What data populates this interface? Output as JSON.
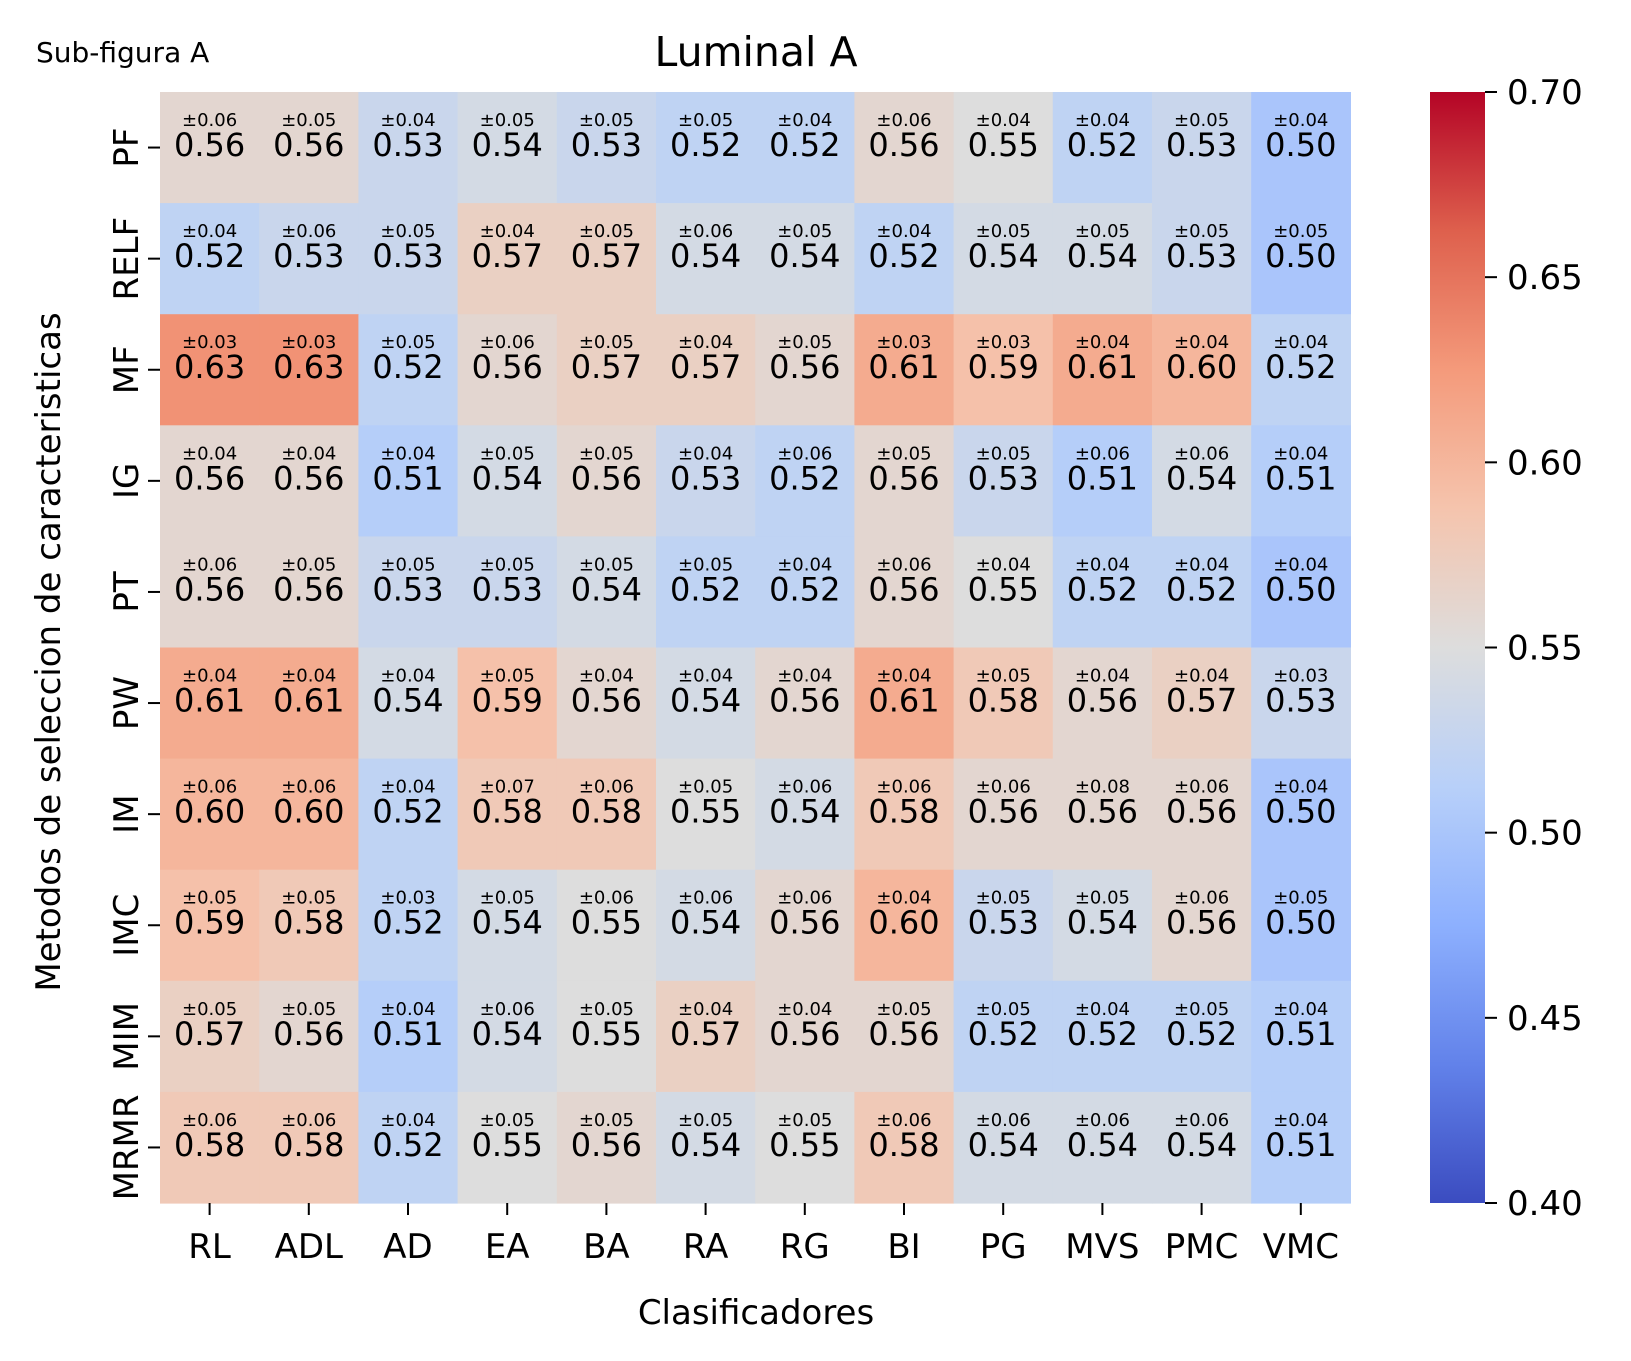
{
  "figure": {
    "panel_label": "Sub-figura A"
  },
  "chart_data": {
    "type": "heatmap",
    "title": "Luminal A",
    "xlabel": "Clasificadores",
    "ylabel": "Metodos de seleccion de caracteristicas",
    "categories_x": [
      "RL",
      "ADL",
      "AD",
      "EA",
      "BA",
      "RA",
      "RG",
      "BI",
      "PG",
      "MVS",
      "PMC",
      "VMC"
    ],
    "categories_y": [
      "PF",
      "RELF",
      "MF",
      "IG",
      "PT",
      "PW",
      "IM",
      "IMC",
      "MIM",
      "MRMR"
    ],
    "values": [
      [
        0.56,
        0.56,
        0.53,
        0.54,
        0.53,
        0.52,
        0.52,
        0.56,
        0.55,
        0.52,
        0.53,
        0.5
      ],
      [
        0.52,
        0.53,
        0.53,
        0.57,
        0.57,
        0.54,
        0.54,
        0.52,
        0.54,
        0.54,
        0.53,
        0.5
      ],
      [
        0.63,
        0.63,
        0.52,
        0.56,
        0.57,
        0.57,
        0.56,
        0.61,
        0.59,
        0.61,
        0.6,
        0.52
      ],
      [
        0.56,
        0.56,
        0.51,
        0.54,
        0.56,
        0.53,
        0.52,
        0.56,
        0.53,
        0.51,
        0.54,
        0.51
      ],
      [
        0.56,
        0.56,
        0.53,
        0.53,
        0.54,
        0.52,
        0.52,
        0.56,
        0.55,
        0.52,
        0.52,
        0.5
      ],
      [
        0.61,
        0.61,
        0.54,
        0.59,
        0.56,
        0.54,
        0.56,
        0.61,
        0.58,
        0.56,
        0.57,
        0.53
      ],
      [
        0.6,
        0.6,
        0.52,
        0.58,
        0.58,
        0.55,
        0.54,
        0.58,
        0.56,
        0.56,
        0.56,
        0.5
      ],
      [
        0.59,
        0.58,
        0.52,
        0.54,
        0.55,
        0.54,
        0.56,
        0.6,
        0.53,
        0.54,
        0.56,
        0.5
      ],
      [
        0.57,
        0.56,
        0.51,
        0.54,
        0.55,
        0.57,
        0.56,
        0.56,
        0.52,
        0.52,
        0.52,
        0.51
      ],
      [
        0.58,
        0.58,
        0.52,
        0.55,
        0.56,
        0.54,
        0.55,
        0.58,
        0.54,
        0.54,
        0.54,
        0.51
      ]
    ],
    "errors": [
      [
        "±0.06",
        "±0.05",
        "±0.04",
        "±0.05",
        "±0.05",
        "±0.05",
        "±0.04",
        "±0.06",
        "±0.04",
        "±0.04",
        "±0.05",
        "±0.04"
      ],
      [
        "±0.04",
        "±0.06",
        "±0.05",
        "±0.04",
        "±0.05",
        "±0.06",
        "±0.05",
        "±0.04",
        "±0.05",
        "±0.05",
        "±0.05",
        "±0.05"
      ],
      [
        "±0.03",
        "±0.03",
        "±0.05",
        "±0.06",
        "±0.05",
        "±0.04",
        "±0.05",
        "±0.03",
        "±0.03",
        "±0.04",
        "±0.04",
        "±0.04"
      ],
      [
        "±0.04",
        "±0.04",
        "±0.04",
        "±0.05",
        "±0.05",
        "±0.04",
        "±0.06",
        "±0.05",
        "±0.05",
        "±0.06",
        "±0.06",
        "±0.04"
      ],
      [
        "±0.06",
        "±0.05",
        "±0.05",
        "±0.05",
        "±0.05",
        "±0.05",
        "±0.04",
        "±0.06",
        "±0.04",
        "±0.04",
        "±0.04",
        "±0.04"
      ],
      [
        "±0.04",
        "±0.04",
        "±0.04",
        "±0.05",
        "±0.04",
        "±0.04",
        "±0.04",
        "±0.04",
        "±0.05",
        "±0.04",
        "±0.04",
        "±0.03"
      ],
      [
        "±0.06",
        "±0.06",
        "±0.04",
        "±0.07",
        "±0.06",
        "±0.05",
        "±0.06",
        "±0.06",
        "±0.06",
        "±0.08",
        "±0.06",
        "±0.04"
      ],
      [
        "±0.05",
        "±0.05",
        "±0.03",
        "±0.05",
        "±0.06",
        "±0.06",
        "±0.06",
        "±0.04",
        "±0.05",
        "±0.05",
        "±0.06",
        "±0.05"
      ],
      [
        "±0.05",
        "±0.05",
        "±0.04",
        "±0.06",
        "±0.05",
        "±0.04",
        "±0.04",
        "±0.05",
        "±0.05",
        "±0.04",
        "±0.05",
        "±0.04"
      ],
      [
        "±0.06",
        "±0.06",
        "±0.04",
        "±0.05",
        "±0.05",
        "±0.05",
        "±0.05",
        "±0.06",
        "±0.06",
        "±0.06",
        "±0.06",
        "±0.04"
      ]
    ],
    "colorbar": {
      "min": 0.4,
      "max": 0.7,
      "ticks": [
        "0.40",
        "0.45",
        "0.50",
        "0.55",
        "0.60",
        "0.65",
        "0.70"
      ],
      "colormap": "coolwarm"
    },
    "grid": false,
    "legend": "colorbar-right"
  }
}
